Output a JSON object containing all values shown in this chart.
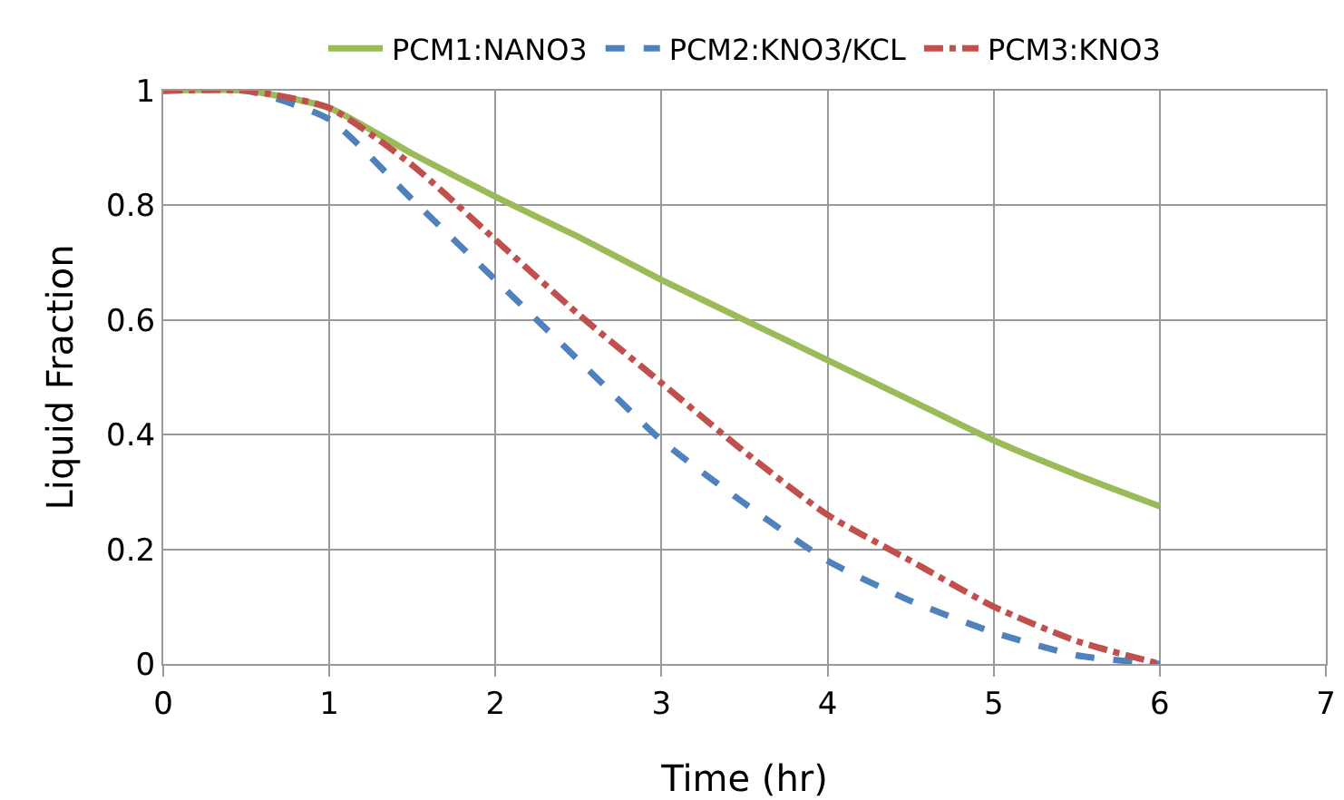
{
  "chart_data": {
    "type": "line",
    "xlabel": "Time (hr)",
    "ylabel": "Liquid Fraction",
    "x": [
      0,
      0.5,
      1,
      1.5,
      2,
      2.5,
      3,
      3.5,
      4,
      4.5,
      5,
      5.5,
      6
    ],
    "series": [
      {
        "name": "PCM1:NANO3",
        "color": "#9bbb59",
        "line_style": "solid",
        "values": [
          1,
          1,
          0.97,
          0.89,
          0.815,
          0.745,
          0.67,
          0.6,
          0.53,
          0.46,
          0.39,
          0.33,
          0.275
        ]
      },
      {
        "name": "PCM2:KNO3/KCL",
        "color": "#4f81bd",
        "line_style": "dashed",
        "values": [
          1,
          1,
          0.95,
          0.81,
          0.67,
          0.53,
          0.39,
          0.28,
          0.18,
          0.11,
          0.055,
          0.015,
          0
        ]
      },
      {
        "name": "PCM3:KNO3",
        "color": "#c0504d",
        "line_style": "dashdot",
        "values": [
          1,
          1,
          0.97,
          0.87,
          0.74,
          0.61,
          0.49,
          0.37,
          0.26,
          0.18,
          0.1,
          0.04,
          0
        ]
      }
    ],
    "xlim": [
      0,
      7
    ],
    "xticks": [
      0,
      1,
      2,
      3,
      4,
      5,
      6,
      7
    ],
    "ylim": [
      0,
      1
    ],
    "yticks": [
      0,
      0.2,
      0.4,
      0.6,
      0.8,
      1
    ],
    "grid": true,
    "legend": "top",
    "marker": "none"
  }
}
